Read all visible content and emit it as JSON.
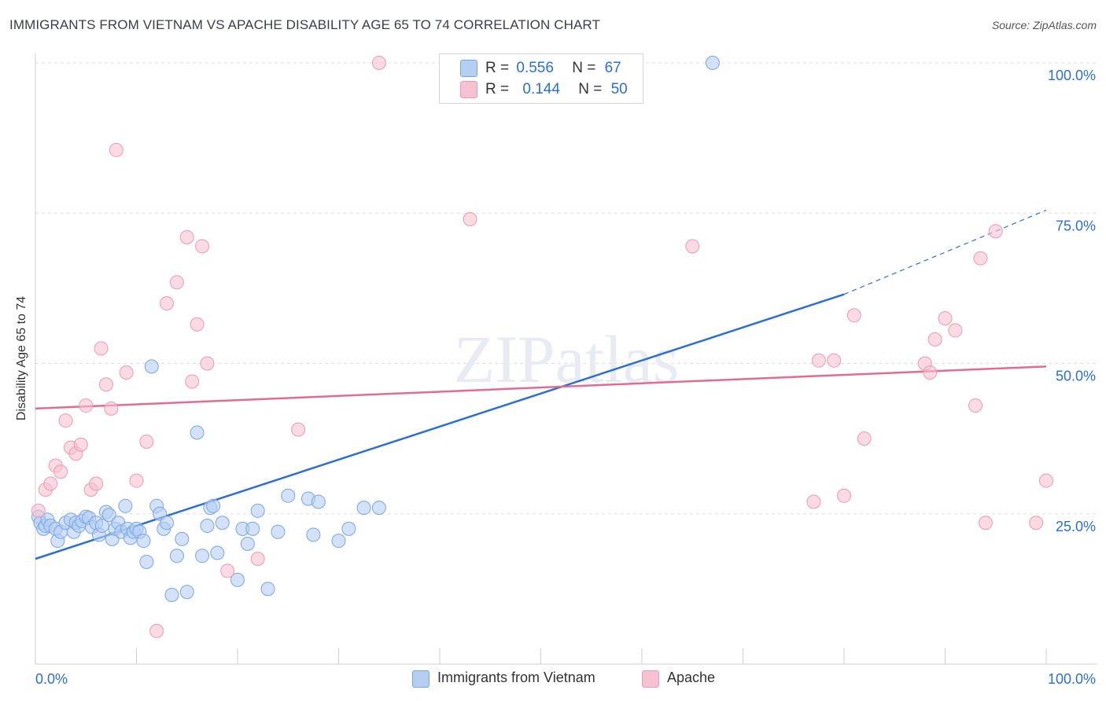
{
  "header": {
    "title": "IMMIGRANTS FROM VIETNAM VS APACHE DISABILITY AGE 65 TO 74 CORRELATION CHART",
    "source": "Source: ZipAtlas.com"
  },
  "watermark": "ZIPatlas",
  "colors": {
    "blue": "#2c6fd1",
    "blue_fill": "#b5cff3",
    "pink": "#e06c93",
    "pink_fill": "#f6c1d1"
  },
  "legend": {
    "rows": [
      {
        "r_label": "R =",
        "r_value": "0.556",
        "n_label": "N =",
        "n_value": "67"
      },
      {
        "r_label": "R =",
        "r_value": "0.144",
        "n_label": "N =",
        "n_value": "50"
      }
    ]
  },
  "bottom_legend": {
    "series1": "Immigrants from Vietnam",
    "series2": "Apache"
  },
  "chart_data": {
    "type": "scatter",
    "title": "IMMIGRANTS FROM VIETNAM VS APACHE DISABILITY AGE 65 TO 74 CORRELATION CHART",
    "xlabel": "",
    "ylabel": "Disability Age 65 to 74",
    "xlim": [
      0,
      100
    ],
    "ylim": [
      0,
      100
    ],
    "x_tick_labels": [
      "0.0%",
      "100.0%"
    ],
    "y_tick_labels": [
      "25.0%",
      "50.0%",
      "75.0%",
      "100.0%"
    ],
    "y_ticks": [
      25,
      50,
      75,
      100
    ],
    "grid": true,
    "legend_position": "top-center",
    "series": [
      {
        "name": "Immigrants from Vietnam",
        "color": "#2c6fd1",
        "r": 0.556,
        "n": 67,
        "trend": {
          "x": [
            0,
            80
          ],
          "y": [
            17.5,
            61.5
          ],
          "dashed_to": [
            100,
            75.5
          ]
        },
        "points": [
          [
            0.3,
            24.5
          ],
          [
            0.5,
            23.5
          ],
          [
            0.8,
            22.5
          ],
          [
            1.0,
            23.0
          ],
          [
            1.2,
            24.0
          ],
          [
            1.5,
            23.0
          ],
          [
            2.0,
            22.5
          ],
          [
            2.2,
            20.5
          ],
          [
            2.5,
            22.0
          ],
          [
            3.0,
            23.5
          ],
          [
            3.5,
            24.0
          ],
          [
            3.8,
            22.0
          ],
          [
            4.0,
            23.5
          ],
          [
            4.3,
            23.0
          ],
          [
            4.6,
            23.8
          ],
          [
            5.0,
            24.5
          ],
          [
            5.3,
            24.3
          ],
          [
            5.6,
            22.8
          ],
          [
            6.0,
            23.5
          ],
          [
            6.3,
            21.5
          ],
          [
            6.6,
            23.0
          ],
          [
            7.0,
            25.3
          ],
          [
            7.3,
            24.8
          ],
          [
            7.6,
            20.8
          ],
          [
            7.9,
            22.5
          ],
          [
            8.2,
            23.5
          ],
          [
            8.5,
            22.0
          ],
          [
            8.9,
            26.3
          ],
          [
            9.1,
            22.5
          ],
          [
            9.4,
            21.0
          ],
          [
            9.7,
            22.0
          ],
          [
            10.0,
            22.5
          ],
          [
            10.3,
            22.0
          ],
          [
            10.7,
            20.5
          ],
          [
            11.0,
            17.0
          ],
          [
            11.5,
            49.5
          ],
          [
            12.0,
            26.3
          ],
          [
            12.3,
            25.0
          ],
          [
            12.7,
            22.5
          ],
          [
            13.0,
            23.5
          ],
          [
            13.5,
            11.5
          ],
          [
            14.0,
            18.0
          ],
          [
            14.5,
            20.8
          ],
          [
            15.0,
            12.0
          ],
          [
            16.0,
            38.5
          ],
          [
            16.5,
            18.0
          ],
          [
            17.0,
            23.0
          ],
          [
            17.3,
            26.0
          ],
          [
            17.6,
            26.3
          ],
          [
            18.0,
            18.5
          ],
          [
            18.5,
            23.5
          ],
          [
            20.0,
            14.0
          ],
          [
            20.5,
            22.5
          ],
          [
            21.0,
            20.0
          ],
          [
            21.5,
            22.5
          ],
          [
            22.0,
            25.5
          ],
          [
            23.0,
            12.5
          ],
          [
            24.0,
            22.0
          ],
          [
            25.0,
            28.0
          ],
          [
            27.0,
            27.5
          ],
          [
            27.5,
            21.5
          ],
          [
            28.0,
            27.0
          ],
          [
            30.0,
            20.5
          ],
          [
            31.0,
            22.5
          ],
          [
            32.5,
            26.0
          ],
          [
            34.0,
            26.0
          ],
          [
            67.0,
            100.0
          ]
        ]
      },
      {
        "name": "Apache",
        "color": "#e06c93",
        "r": 0.144,
        "n": 50,
        "trend": {
          "x": [
            0,
            100
          ],
          "y": [
            42.5,
            49.5
          ]
        },
        "points": [
          [
            0.3,
            25.5
          ],
          [
            1.0,
            29.0
          ],
          [
            1.5,
            30.0
          ],
          [
            2.0,
            33.0
          ],
          [
            2.5,
            32.0
          ],
          [
            3.0,
            40.5
          ],
          [
            3.5,
            36.0
          ],
          [
            4.0,
            35.0
          ],
          [
            4.5,
            36.5
          ],
          [
            5.0,
            43.0
          ],
          [
            5.5,
            29.0
          ],
          [
            6.0,
            30.0
          ],
          [
            6.5,
            52.5
          ],
          [
            7.0,
            46.5
          ],
          [
            7.5,
            42.5
          ],
          [
            8.0,
            85.5
          ],
          [
            9.0,
            48.5
          ],
          [
            10.0,
            30.5
          ],
          [
            11.0,
            37.0
          ],
          [
            12.0,
            5.5
          ],
          [
            13.0,
            60.0
          ],
          [
            14.0,
            63.5
          ],
          [
            15.0,
            71.0
          ],
          [
            15.5,
            47.0
          ],
          [
            16.0,
            56.5
          ],
          [
            16.5,
            69.5
          ],
          [
            17.0,
            50.0
          ],
          [
            19.0,
            15.5
          ],
          [
            22.0,
            17.5
          ],
          [
            26.0,
            39.0
          ],
          [
            34.0,
            100.0
          ],
          [
            43.0,
            74.0
          ],
          [
            65.0,
            69.5
          ],
          [
            77.0,
            27.0
          ],
          [
            77.5,
            50.5
          ],
          [
            79.0,
            50.5
          ],
          [
            80.0,
            28.0
          ],
          [
            81.0,
            58.0
          ],
          [
            82.0,
            37.5
          ],
          [
            88.0,
            50.0
          ],
          [
            88.5,
            48.5
          ],
          [
            89.0,
            54.0
          ],
          [
            90.0,
            57.5
          ],
          [
            91.0,
            55.5
          ],
          [
            93.0,
            43.0
          ],
          [
            93.5,
            67.5
          ],
          [
            94.0,
            23.5
          ],
          [
            95.0,
            72.0
          ],
          [
            99.0,
            23.5
          ],
          [
            100.0,
            30.5
          ]
        ]
      }
    ]
  }
}
